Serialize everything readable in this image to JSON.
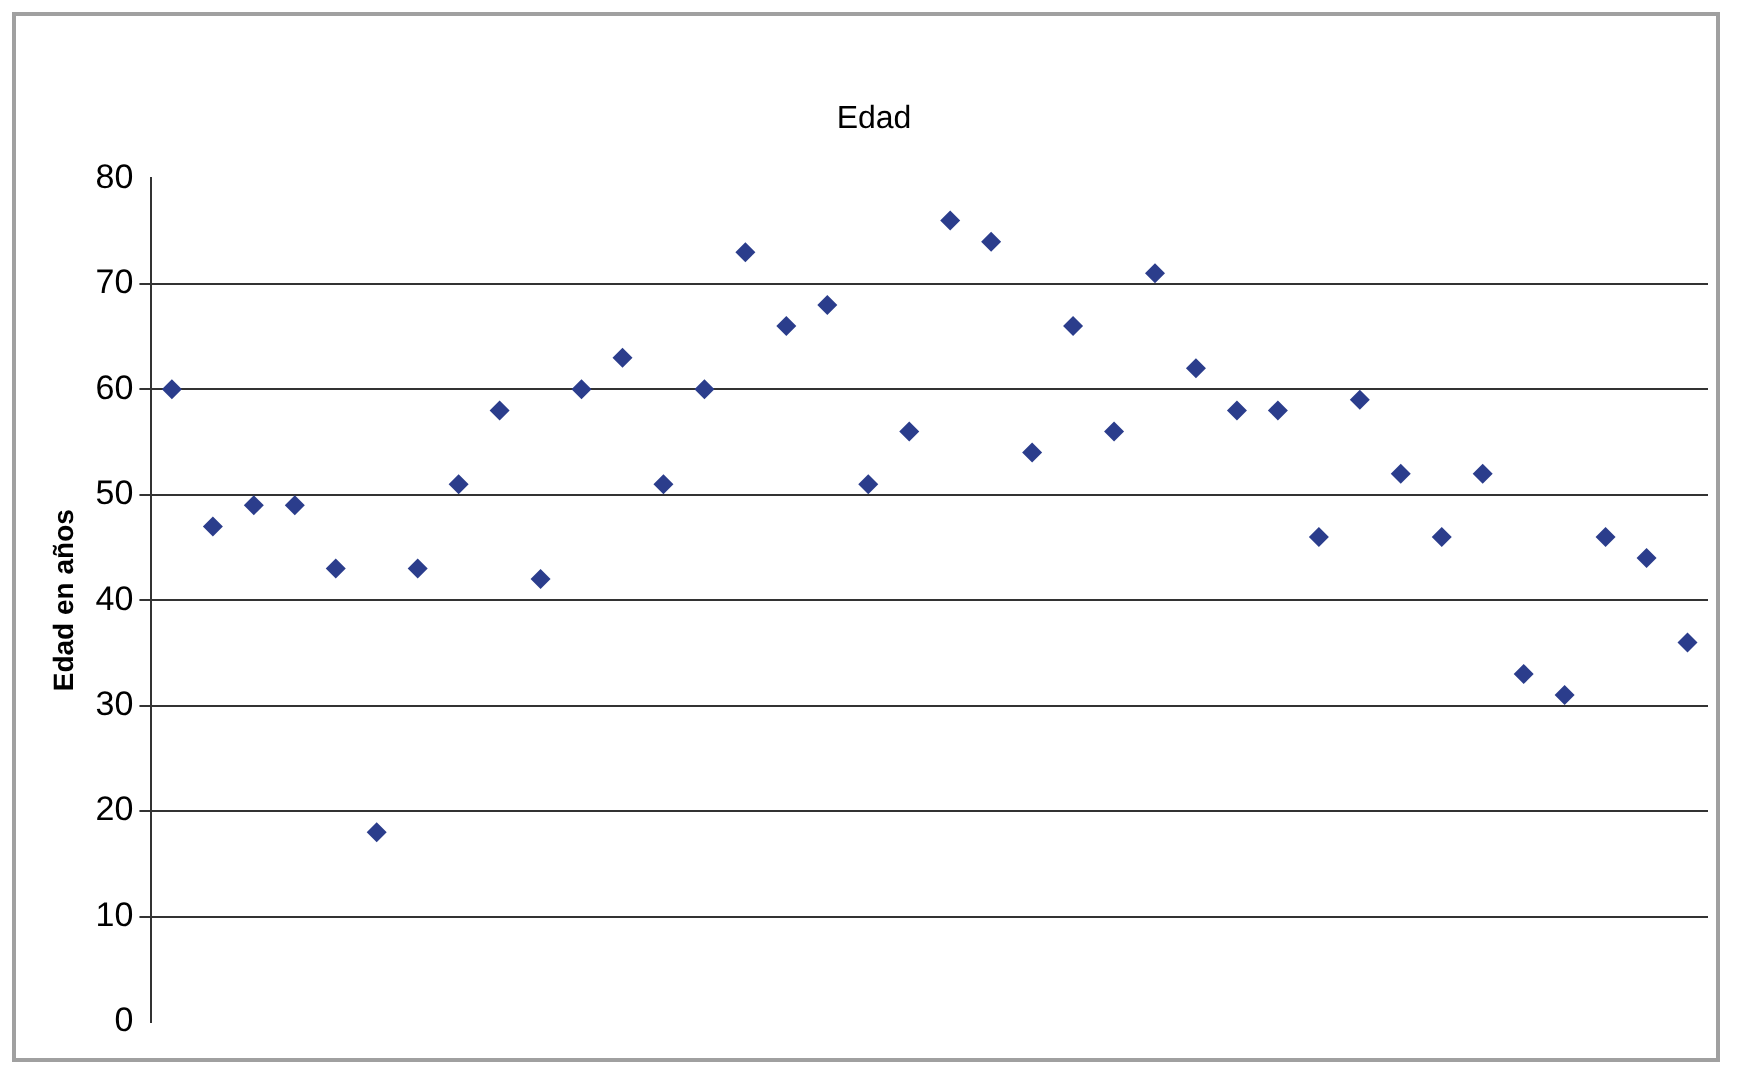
{
  "chart_data": {
    "type": "scatter",
    "title": "Edad",
    "ylabel": "Edad en años",
    "categories": [
      null,
      null,
      null,
      null,
      null,
      null,
      null,
      null,
      null,
      null,
      null,
      null,
      null,
      null,
      null,
      null,
      null,
      null,
      null,
      null,
      null,
      null,
      null,
      null,
      null,
      null,
      null,
      null,
      null,
      null,
      null,
      null,
      null,
      null,
      null,
      null,
      null,
      null
    ],
    "series": [
      {
        "color": "#2b3d8c",
        "values": [
          60,
          47,
          49,
          49,
          43,
          18,
          43,
          51,
          58,
          42,
          60,
          63,
          51,
          60,
          73,
          66,
          68,
          51,
          56,
          76,
          74,
          54,
          66,
          56,
          71,
          62,
          58,
          58,
          46,
          59,
          52,
          46,
          52,
          33,
          31,
          46,
          44,
          36
        ]
      }
    ],
    "ylim": [
      0,
      80
    ],
    "yticks": [
      0,
      10,
      20,
      30,
      40,
      50,
      60,
      70,
      80
    ],
    "grid": "y",
    "legend": false,
    "marker": "diamond",
    "tick_labels": "y"
  }
}
